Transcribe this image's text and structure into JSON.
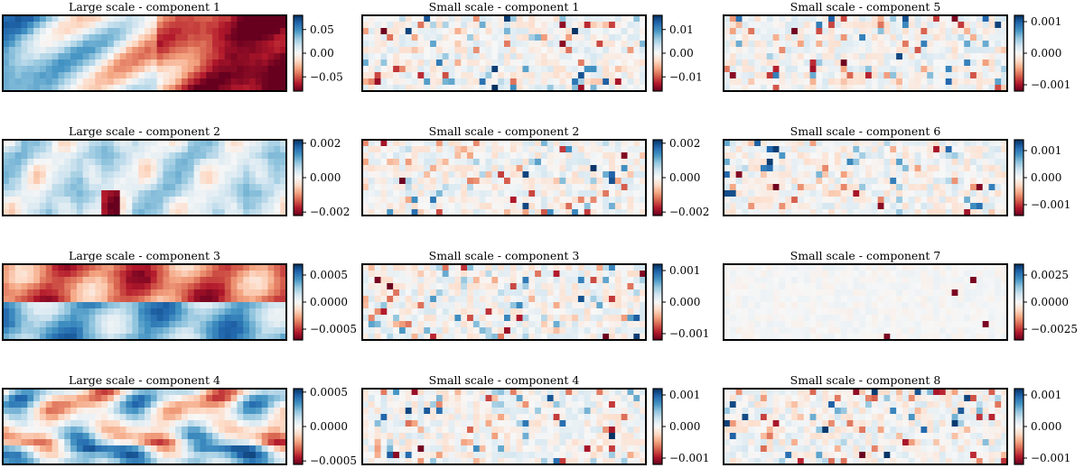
{
  "figure": {
    "layout": "4 rows x 3 columns of heatmap panels with colorbars"
  },
  "chart_data": [
    {
      "type": "heatmap",
      "title": "Large scale - component 1",
      "pattern": "large",
      "colorbar": {
        "range": [
          -0.08,
          0.08
        ],
        "ticks": [
          0.05,
          0.0,
          -0.05
        ],
        "tick_labels": [
          "0.05",
          "0.00",
          "−0.05"
        ]
      }
    },
    {
      "type": "heatmap",
      "title": "Small scale - component 1",
      "pattern": "small",
      "colorbar": {
        "range": [
          -0.016,
          0.016
        ],
        "ticks": [
          0.01,
          0.0,
          -0.01
        ],
        "tick_labels": [
          "0.01",
          "0.00",
          "−0.01"
        ]
      }
    },
    {
      "type": "heatmap",
      "title": "Small scale - component 5",
      "pattern": "small",
      "colorbar": {
        "range": [
          -0.0012,
          0.0012
        ],
        "ticks": [
          0.001,
          0.0,
          -0.001
        ],
        "tick_labels": [
          "0.001",
          "0.000",
          "−0.001"
        ]
      }
    },
    {
      "type": "heatmap",
      "title": "Large scale - component 2",
      "pattern": "large",
      "colorbar": {
        "range": [
          -0.0022,
          0.0022
        ],
        "ticks": [
          0.002,
          0.0,
          -0.002
        ],
        "tick_labels": [
          "0.002",
          "0.000",
          "−0.002"
        ]
      }
    },
    {
      "type": "heatmap",
      "title": "Small scale - component 2",
      "pattern": "small",
      "colorbar": {
        "range": [
          -0.0022,
          0.0022
        ],
        "ticks": [
          0.002,
          0.0,
          -0.002
        ],
        "tick_labels": [
          "0.002",
          "0.000",
          "−0.002"
        ]
      }
    },
    {
      "type": "heatmap",
      "title": "Small scale - component 6",
      "pattern": "small",
      "colorbar": {
        "range": [
          -0.0014,
          0.0014
        ],
        "ticks": [
          0.001,
          0.0,
          -0.001
        ],
        "tick_labels": [
          "0.001",
          "0.000",
          "−0.001"
        ]
      }
    },
    {
      "type": "heatmap",
      "title": "Large scale - component 3",
      "pattern": "large",
      "colorbar": {
        "range": [
          -0.0007,
          0.0007
        ],
        "ticks": [
          0.0005,
          0.0,
          -0.0005
        ],
        "tick_labels": [
          "0.0005",
          "0.0000",
          "−0.0005"
        ]
      }
    },
    {
      "type": "heatmap",
      "title": "Small scale - component 3",
      "pattern": "small",
      "colorbar": {
        "range": [
          -0.0012,
          0.0012
        ],
        "ticks": [
          0.001,
          0.0,
          -0.001
        ],
        "tick_labels": [
          "0.001",
          "0.000",
          "−0.001"
        ]
      }
    },
    {
      "type": "heatmap",
      "title": "Small scale - component 7",
      "pattern": "faint",
      "colorbar": {
        "range": [
          -0.0035,
          0.0035
        ],
        "ticks": [
          0.0025,
          0.0,
          -0.0025
        ],
        "tick_labels": [
          "0.0025",
          "0.0000",
          "−0.0025"
        ]
      }
    },
    {
      "type": "heatmap",
      "title": "Large scale - component 4",
      "pattern": "large",
      "colorbar": {
        "range": [
          -0.00055,
          0.00055
        ],
        "ticks": [
          0.0005,
          0.0,
          -0.0005
        ],
        "tick_labels": [
          "0.0005",
          "0.0000",
          "−0.0005"
        ]
      }
    },
    {
      "type": "heatmap",
      "title": "Small scale - component 4",
      "pattern": "small",
      "colorbar": {
        "range": [
          -0.0012,
          0.0012
        ],
        "ticks": [
          0.001,
          0.0,
          -0.001
        ],
        "tick_labels": [
          "0.001",
          "0.000",
          "−0.001"
        ]
      }
    },
    {
      "type": "heatmap",
      "title": "Small scale - component 8",
      "pattern": "small",
      "colorbar": {
        "range": [
          -0.0012,
          0.0012
        ],
        "ticks": [
          0.001,
          0.0,
          -0.001
        ],
        "tick_labels": [
          "0.001",
          "0.000",
          "−0.001"
        ]
      }
    }
  ],
  "colormap": {
    "name": "RdBu",
    "low": "#67001f",
    "mid": "#f7f7f7",
    "high": "#053061"
  }
}
